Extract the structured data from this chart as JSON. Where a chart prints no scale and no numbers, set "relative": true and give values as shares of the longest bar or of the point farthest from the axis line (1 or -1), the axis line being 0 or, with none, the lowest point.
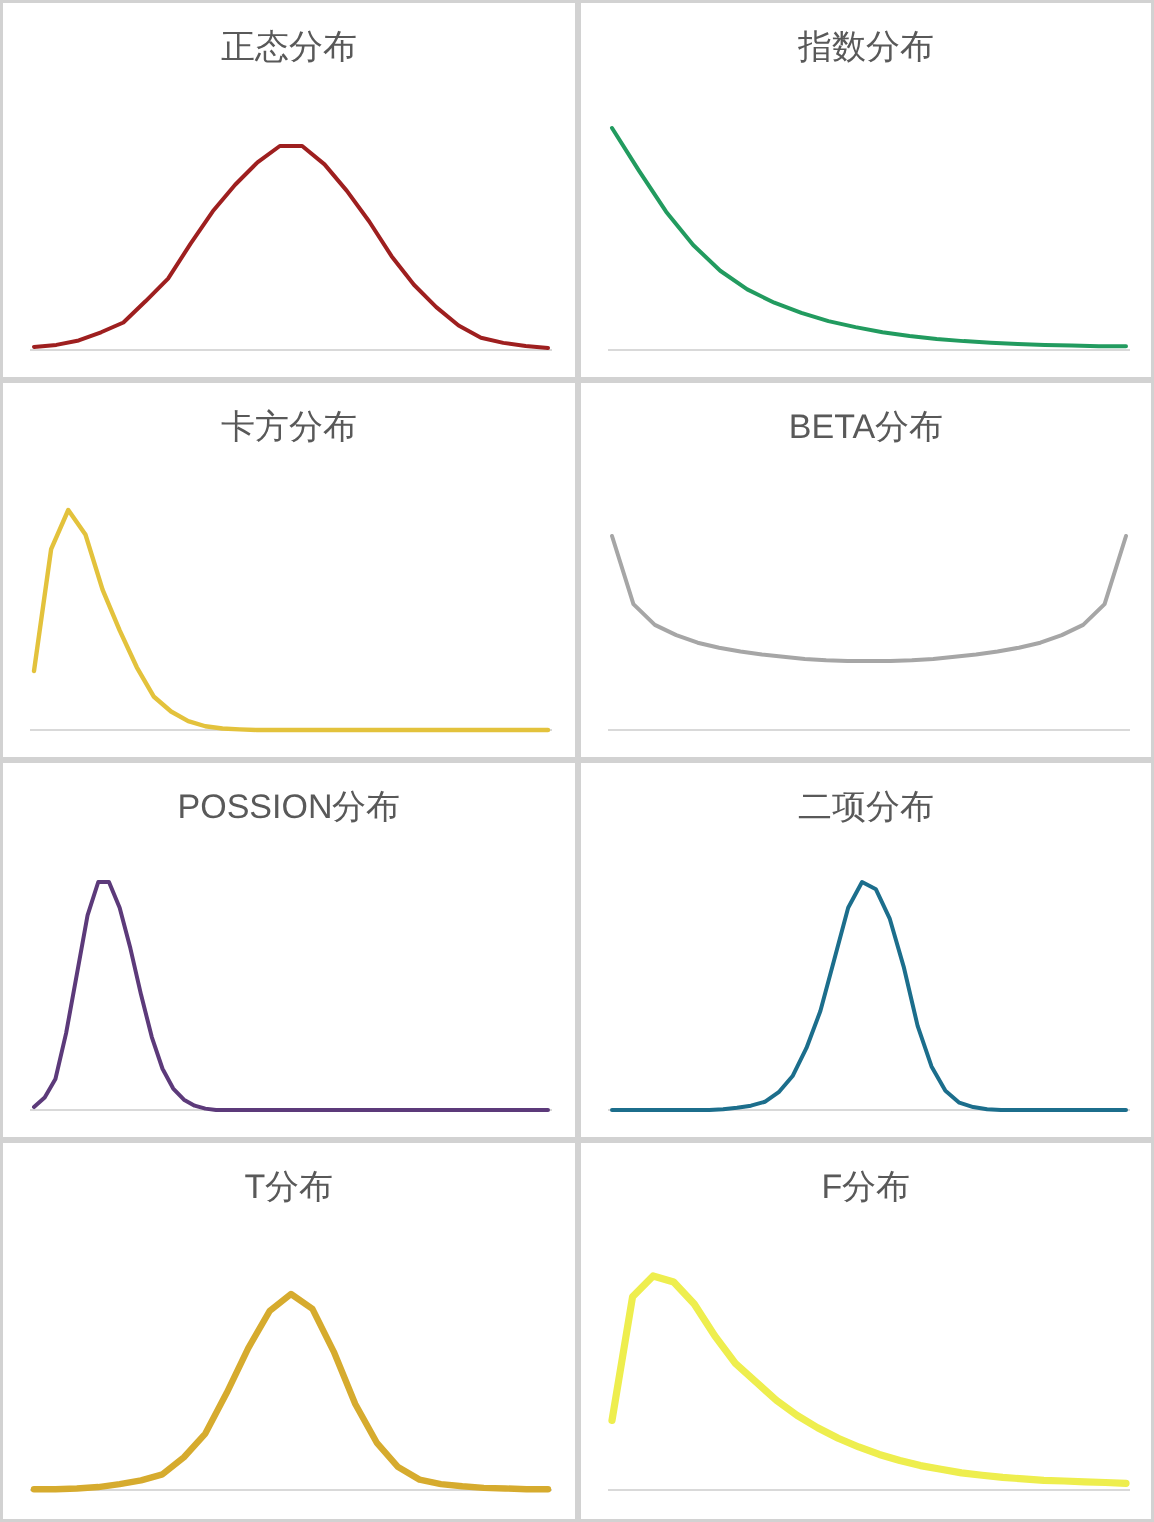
{
  "chart_data": [
    {
      "type": "line",
      "title": "正态分布",
      "relative": true,
      "color": "#9e1f1f",
      "categories": [
        null,
        null,
        null,
        null,
        null,
        null,
        null,
        null,
        null,
        null,
        null,
        null,
        null,
        null,
        null,
        null,
        null,
        null,
        null,
        null,
        null,
        null,
        null,
        null
      ],
      "values": [
        0.015,
        0.025,
        0.047,
        0.087,
        0.135,
        0.24,
        0.35,
        0.52,
        0.68,
        0.81,
        0.92,
        1,
        1,
        0.91,
        0.78,
        0.63,
        0.46,
        0.32,
        0.21,
        0.12,
        0.06,
        0.035,
        0.02,
        0.01
      ]
    },
    {
      "type": "line",
      "title": "指数分布",
      "relative": true,
      "color": "#229b5f",
      "categories": [
        null,
        null,
        null,
        null,
        null,
        null,
        null,
        null,
        null,
        null,
        null,
        null,
        null,
        null,
        null,
        null,
        null,
        null,
        null,
        null
      ],
      "values": [
        1,
        0.807,
        0.623,
        0.473,
        0.357,
        0.273,
        0.213,
        0.167,
        0.13,
        0.103,
        0.08,
        0.063,
        0.05,
        0.04,
        0.033,
        0.027,
        0.023,
        0.02,
        0.017,
        0.017
      ]
    },
    {
      "type": "line",
      "title": "卡方分布",
      "relative": true,
      "color": "#e3c23c",
      "categories": [
        null,
        null,
        null,
        null,
        null,
        null,
        null,
        null,
        null,
        null,
        null,
        null,
        null,
        null,
        null,
        null,
        null,
        null,
        null,
        null,
        null,
        null,
        null,
        null,
        null,
        null,
        null,
        null,
        null,
        null,
        null
      ],
      "values": [
        0.268,
        0.822,
        1,
        0.889,
        0.638,
        0.453,
        0.285,
        0.151,
        0.084,
        0.04,
        0.017,
        0.007,
        0.003,
        0,
        0,
        0,
        0,
        0,
        0,
        0,
        0,
        0,
        0,
        0,
        0,
        0,
        0,
        0,
        0,
        0,
        0
      ]
    },
    {
      "type": "line",
      "title": "BETA分布",
      "relative": true,
      "color": "#a6a6a6",
      "categories": [
        null,
        null,
        null,
        null,
        null,
        null,
        null,
        null,
        null,
        null,
        null,
        null,
        null,
        null,
        null,
        null,
        null,
        null,
        null,
        null,
        null,
        null,
        null,
        null,
        null
      ],
      "values": [
        1,
        0.649,
        0.542,
        0.489,
        0.45,
        0.424,
        0.405,
        0.389,
        0.378,
        0.366,
        0.359,
        0.355,
        0.355,
        0.355,
        0.359,
        0.366,
        0.378,
        0.389,
        0.405,
        0.424,
        0.45,
        0.489,
        0.542,
        0.649,
        1
      ]
    },
    {
      "type": "line",
      "title": "POSSION分布",
      "relative": true,
      "color": "#5c3a7a",
      "categories": [
        null,
        null,
        null,
        null,
        null,
        null,
        null,
        null,
        null,
        null,
        null,
        null,
        null,
        null,
        null,
        null,
        null,
        null,
        null,
        null,
        null,
        null,
        null,
        null,
        null,
        null,
        null,
        null,
        null,
        null,
        null,
        null,
        null,
        null,
        null,
        null,
        null,
        null,
        null,
        null,
        null,
        null,
        null,
        null,
        null,
        null,
        null,
        null,
        null
      ],
      "values": [
        0.013,
        0.055,
        0.136,
        0.337,
        0.595,
        0.854,
        1,
        1,
        0.887,
        0.709,
        0.505,
        0.32,
        0.181,
        0.094,
        0.045,
        0.019,
        0.006,
        0,
        0,
        0,
        0,
        0,
        0,
        0,
        0,
        0,
        0,
        0,
        0,
        0,
        0,
        0,
        0,
        0,
        0,
        0,
        0,
        0,
        0,
        0,
        0,
        0,
        0,
        0,
        0,
        0,
        0,
        0,
        0
      ]
    },
    {
      "type": "line",
      "title": "二项分布",
      "relative": true,
      "color": "#1c6e8c",
      "categories": [
        null,
        null,
        null,
        null,
        null,
        null,
        null,
        null,
        null,
        null,
        null,
        null,
        null,
        null,
        null,
        null,
        null,
        null,
        null,
        null,
        null,
        null,
        null,
        null,
        null,
        null,
        null,
        null,
        null,
        null,
        null,
        null,
        null,
        null,
        null,
        null,
        null,
        null
      ],
      "values": [
        0,
        0,
        0,
        0,
        0,
        0,
        0,
        0,
        0.003,
        0.01,
        0.019,
        0.036,
        0.078,
        0.149,
        0.272,
        0.434,
        0.66,
        0.887,
        1,
        0.968,
        0.838,
        0.628,
        0.369,
        0.191,
        0.084,
        0.032,
        0.013,
        0.003,
        0,
        0,
        0,
        0,
        0,
        0,
        0,
        0,
        0,
        0
      ]
    },
    {
      "type": "line",
      "title": "T分布",
      "relative": true,
      "color": "#d6ab2e",
      "categories": [
        null,
        null,
        null,
        null,
        null,
        null,
        null,
        null,
        null,
        null,
        null,
        null,
        null,
        null,
        null,
        null,
        null,
        null,
        null,
        null,
        null,
        null,
        null,
        null,
        null
      ],
      "values": [
        0.004,
        0.004,
        0.008,
        0.015,
        0.03,
        0.049,
        0.08,
        0.167,
        0.288,
        0.496,
        0.723,
        0.913,
        1,
        0.924,
        0.705,
        0.439,
        0.242,
        0.117,
        0.053,
        0.03,
        0.019,
        0.011,
        0.008,
        0.004,
        0.004
      ]
    },
    {
      "type": "line",
      "title": "F分布",
      "relative": true,
      "color": "#eeee4e",
      "categories": [
        null,
        null,
        null,
        null,
        null,
        null,
        null,
        null,
        null,
        null,
        null,
        null,
        null,
        null,
        null,
        null,
        null,
        null,
        null,
        null,
        null,
        null,
        null,
        null,
        null,
        null
      ],
      "values": [
        0.325,
        0.903,
        1,
        0.972,
        0.869,
        0.72,
        0.592,
        0.505,
        0.419,
        0.349,
        0.291,
        0.242,
        0.201,
        0.166,
        0.138,
        0.114,
        0.097,
        0.08,
        0.069,
        0.059,
        0.052,
        0.045,
        0.042,
        0.038,
        0.035,
        0.031
      ]
    }
  ]
}
